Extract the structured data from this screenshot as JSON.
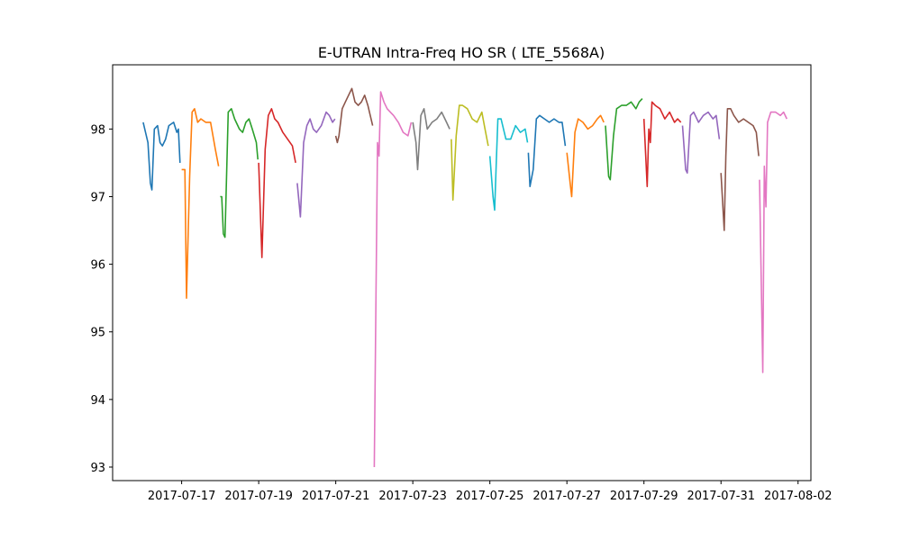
{
  "chart_data": {
    "type": "line",
    "title": "E-UTRAN Intra-Freq HO SR ( LTE_5568A)",
    "xlabel": "",
    "ylabel": "",
    "x_ticks": [
      "2017-07-17",
      "2017-07-19",
      "2017-07-21",
      "2017-07-23",
      "2017-07-25",
      "2017-07-27",
      "2017-07-29",
      "2017-07-31",
      "2017-08-02"
    ],
    "y_ticks": [
      93,
      94,
      95,
      96,
      97,
      98
    ],
    "xlim": [
      "2017-07-15 05:00",
      "2017-08-02 08:00"
    ],
    "ylim": [
      92.8,
      98.95
    ],
    "grid": false,
    "legend": "none",
    "palette": [
      "#1f77b4",
      "#ff7f0e",
      "#2ca02c",
      "#d62728",
      "#9467bd",
      "#8c564b",
      "#e377c2",
      "#7f7f7f",
      "#bcbd22",
      "#17becf"
    ],
    "series": [
      {
        "x": [
          "2017-07-16 00:00",
          "2017-07-16 03:00",
          "2017-07-16 04:30",
          "2017-07-16 05:30",
          "2017-07-16 07:00",
          "2017-07-16 09:00",
          "2017-07-16 10:30",
          "2017-07-16 12:00",
          "2017-07-16 14:00",
          "2017-07-16 16:00",
          "2017-07-16 19:00",
          "2017-07-16 21:00",
          "2017-07-16 22:00",
          "2017-07-16 23:00"
        ],
        "y": [
          98.1,
          97.8,
          97.2,
          97.1,
          98.0,
          98.05,
          97.8,
          97.75,
          97.85,
          98.05,
          98.1,
          97.95,
          98.0,
          97.5
        ]
      },
      {
        "x": [
          "2017-07-17 00:00",
          "2017-07-17 02:00",
          "2017-07-17 03:00",
          "2017-07-17 05:00",
          "2017-07-17 06:30",
          "2017-07-17 08:00",
          "2017-07-17 10:00",
          "2017-07-17 12:00",
          "2017-07-17 15:00",
          "2017-07-17 18:00",
          "2017-07-17 21:00",
          "2017-07-17 23:00"
        ],
        "y": [
          97.4,
          97.4,
          95.5,
          97.3,
          98.25,
          98.3,
          98.1,
          98.15,
          98.1,
          98.1,
          97.7,
          97.45
        ]
      },
      {
        "x": [
          "2017-07-18 00:00",
          "2017-07-18 01:00",
          "2017-07-18 02:00",
          "2017-07-18 03:00",
          "2017-07-18 05:00",
          "2017-07-18 07:00",
          "2017-07-18 09:00",
          "2017-07-18 12:00",
          "2017-07-18 14:00",
          "2017-07-18 16:00",
          "2017-07-18 18:00",
          "2017-07-18 20:00",
          "2017-07-18 22:30",
          "2017-07-18 23:30"
        ],
        "y": [
          97.0,
          97.0,
          96.45,
          96.4,
          98.25,
          98.3,
          98.15,
          98.0,
          97.95,
          98.1,
          98.15,
          98.0,
          97.8,
          97.55
        ]
      },
      {
        "x": [
          "2017-07-19 00:00",
          "2017-07-19 02:00",
          "2017-07-19 04:00",
          "2017-07-19 06:00",
          "2017-07-19 08:00",
          "2017-07-19 10:00",
          "2017-07-19 12:00",
          "2017-07-19 15:00",
          "2017-07-19 18:00",
          "2017-07-19 21:00",
          "2017-07-19 23:00"
        ],
        "y": [
          97.5,
          96.1,
          97.7,
          98.2,
          98.3,
          98.15,
          98.1,
          97.95,
          97.85,
          97.75,
          97.5
        ]
      },
      {
        "x": [
          "2017-07-20 00:00",
          "2017-07-20 02:00",
          "2017-07-20 04:00",
          "2017-07-20 06:00",
          "2017-07-20 08:00",
          "2017-07-20 10:00",
          "2017-07-20 12:00",
          "2017-07-20 15:00",
          "2017-07-20 18:00",
          "2017-07-20 20:00",
          "2017-07-20 22:00",
          "2017-07-20 23:30"
        ],
        "y": [
          97.2,
          96.7,
          97.8,
          98.05,
          98.15,
          98.0,
          97.95,
          98.05,
          98.25,
          98.2,
          98.1,
          98.15
        ]
      },
      {
        "x": [
          "2017-07-21 00:00",
          "2017-07-21 01:00",
          "2017-07-21 02:00",
          "2017-07-21 04:00",
          "2017-07-21 06:00",
          "2017-07-21 08:00",
          "2017-07-21 10:00",
          "2017-07-21 12:00",
          "2017-07-21 14:00",
          "2017-07-21 16:00",
          "2017-07-21 18:00",
          "2017-07-21 20:00",
          "2017-07-21 23:00"
        ],
        "y": [
          97.9,
          97.8,
          97.9,
          98.3,
          98.4,
          98.5,
          98.6,
          98.4,
          98.35,
          98.4,
          98.5,
          98.35,
          98.05
        ]
      },
      {
        "x": [
          "2017-07-22 00:00",
          "2017-07-22 02:00",
          "2017-07-22 03:00",
          "2017-07-22 04:00",
          "2017-07-22 06:00",
          "2017-07-22 08:00",
          "2017-07-22 10:00",
          "2017-07-22 12:00",
          "2017-07-22 15:00",
          "2017-07-22 18:00",
          "2017-07-22 21:00",
          "2017-07-22 23:00"
        ],
        "y": [
          93.0,
          97.8,
          97.6,
          98.55,
          98.4,
          98.3,
          98.25,
          98.2,
          98.1,
          97.95,
          97.9,
          98.1
        ]
      },
      {
        "x": [
          "2017-07-23 00:00",
          "2017-07-23 02:00",
          "2017-07-23 03:00",
          "2017-07-23 05:00",
          "2017-07-23 07:00",
          "2017-07-23 09:00",
          "2017-07-23 12:00",
          "2017-07-23 15:00",
          "2017-07-23 18:00",
          "2017-07-23 21:00",
          "2017-07-23 23:00"
        ],
        "y": [
          98.1,
          97.8,
          97.4,
          98.2,
          98.3,
          98.0,
          98.1,
          98.15,
          98.25,
          98.1,
          98.0
        ]
      },
      {
        "x": [
          "2017-07-24 00:00",
          "2017-07-24 01:00",
          "2017-07-24 03:00",
          "2017-07-24 05:00",
          "2017-07-24 07:00",
          "2017-07-24 10:00",
          "2017-07-24 13:00",
          "2017-07-24 16:00",
          "2017-07-24 19:00",
          "2017-07-24 21:00",
          "2017-07-24 23:00"
        ],
        "y": [
          97.85,
          96.95,
          97.9,
          98.35,
          98.35,
          98.3,
          98.15,
          98.1,
          98.25,
          98.0,
          97.75
        ]
      },
      {
        "x": [
          "2017-07-25 00:00",
          "2017-07-25 02:00",
          "2017-07-25 03:00",
          "2017-07-25 04:00",
          "2017-07-25 05:00",
          "2017-07-25 07:00",
          "2017-07-25 10:00",
          "2017-07-25 13:00",
          "2017-07-25 16:00",
          "2017-07-25 19:00",
          "2017-07-25 22:00",
          "2017-07-25 23:30"
        ],
        "y": [
          97.6,
          97.0,
          96.8,
          97.5,
          98.15,
          98.15,
          97.85,
          97.85,
          98.05,
          97.95,
          98.0,
          97.8
        ]
      },
      {
        "x": [
          "2017-07-26 00:00",
          "2017-07-26 01:00",
          "2017-07-26 03:00",
          "2017-07-26 05:00",
          "2017-07-26 07:00",
          "2017-07-26 10:00",
          "2017-07-26 13:00",
          "2017-07-26 16:00",
          "2017-07-26 19:00",
          "2017-07-26 21:00",
          "2017-07-26 23:00"
        ],
        "y": [
          97.65,
          97.15,
          97.4,
          98.15,
          98.2,
          98.15,
          98.1,
          98.15,
          98.1,
          98.1,
          97.75
        ]
      },
      {
        "x": [
          "2017-07-27 00:00",
          "2017-07-27 02:00",
          "2017-07-27 03:00",
          "2017-07-27 05:00",
          "2017-07-27 07:00",
          "2017-07-27 10:00",
          "2017-07-27 13:00",
          "2017-07-27 16:00",
          "2017-07-27 19:00",
          "2017-07-27 21:00",
          "2017-07-27 23:00"
        ],
        "y": [
          97.65,
          97.2,
          97.0,
          97.95,
          98.15,
          98.1,
          98.0,
          98.05,
          98.15,
          98.2,
          98.1
        ]
      },
      {
        "x": [
          "2017-07-28 00:00",
          "2017-07-28 02:00",
          "2017-07-28 03:00",
          "2017-07-28 05:00",
          "2017-07-28 07:00",
          "2017-07-28 10:00",
          "2017-07-28 13:00",
          "2017-07-28 16:00",
          "2017-07-28 19:00",
          "2017-07-28 21:00",
          "2017-07-28 23:00"
        ],
        "y": [
          98.05,
          97.3,
          97.25,
          97.9,
          98.3,
          98.35,
          98.35,
          98.4,
          98.3,
          98.4,
          98.45
        ]
      },
      {
        "x": [
          "2017-07-29 00:00",
          "2017-07-29 02:00",
          "2017-07-29 03:00",
          "2017-07-29 04:00",
          "2017-07-29 05:00",
          "2017-07-29 07:00",
          "2017-07-29 10:00",
          "2017-07-29 13:00",
          "2017-07-29 16:00",
          "2017-07-29 19:00",
          "2017-07-29 21:00",
          "2017-07-29 23:00"
        ],
        "y": [
          98.15,
          97.15,
          98.0,
          97.8,
          98.4,
          98.35,
          98.3,
          98.15,
          98.25,
          98.1,
          98.15,
          98.1
        ]
      },
      {
        "x": [
          "2017-07-30 00:00",
          "2017-07-30 02:00",
          "2017-07-30 03:00",
          "2017-07-30 05:00",
          "2017-07-30 07:00",
          "2017-07-30 10:00",
          "2017-07-30 13:00",
          "2017-07-30 16:00",
          "2017-07-30 19:00",
          "2017-07-30 21:00",
          "2017-07-30 23:00"
        ],
        "y": [
          98.05,
          97.4,
          97.35,
          98.2,
          98.25,
          98.1,
          98.2,
          98.25,
          98.15,
          98.2,
          97.85
        ]
      },
      {
        "x": [
          "2017-07-31 00:00",
          "2017-07-31 02:00",
          "2017-07-31 03:00",
          "2017-07-31 04:00",
          "2017-07-31 06:00",
          "2017-07-31 08:00",
          "2017-07-31 11:00",
          "2017-07-31 14:00",
          "2017-07-31 17:00",
          "2017-07-31 20:00",
          "2017-07-31 22:00",
          "2017-07-31 23:30"
        ],
        "y": [
          97.35,
          96.5,
          97.6,
          98.3,
          98.3,
          98.2,
          98.1,
          98.15,
          98.1,
          98.05,
          97.95,
          97.6
        ]
      },
      {
        "x": [
          "2017-08-01 00:00",
          "2017-08-01 02:00",
          "2017-08-01 03:00",
          "2017-08-01 04:00",
          "2017-08-01 05:00",
          "2017-08-01 07:00",
          "2017-08-01 10:00",
          "2017-08-01 13:00",
          "2017-08-01 15:00",
          "2017-08-01 17:00"
        ],
        "y": [
          97.25,
          94.4,
          97.45,
          96.85,
          98.1,
          98.25,
          98.25,
          98.2,
          98.25,
          98.15
        ]
      }
    ]
  }
}
